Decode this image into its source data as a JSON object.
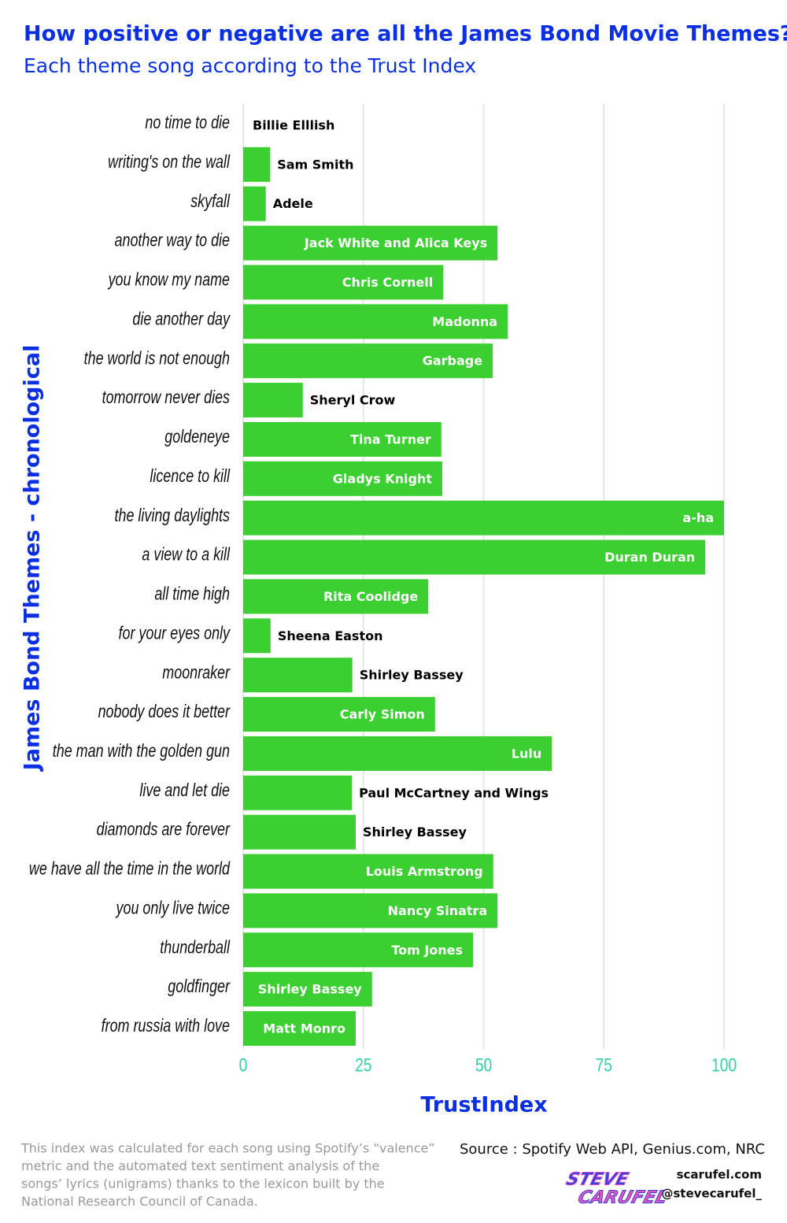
{
  "chart_data": {
    "type": "bar",
    "orientation": "horizontal",
    "title": "How positive or negative are all the James Bond Movie Themes?",
    "subtitle": "Each theme song according to the Trust Index",
    "y_label": "James Bond Themes - chronological",
    "x_label": "TrustIndex",
    "categories": [
      "no time to die",
      "writing's on the wall",
      "skyfall",
      "another way to die",
      "you know my name",
      "die another day",
      "the world is not enough",
      "tomorrow never dies",
      "goldeneye",
      "licence to kill",
      "the living daylights",
      "a view to a kill",
      "all time high",
      "for your eyes only",
      "moonraker",
      "nobody does it better",
      "the man with the golden gun",
      "live and let die",
      "diamonds are forever",
      "we have all the time in the world",
      "you only live twice",
      "thunderball",
      "goldfinger",
      "from russia with love"
    ],
    "values": [
      0,
      5.6,
      4.7,
      52.9,
      41.6,
      55.0,
      51.9,
      12.4,
      41.2,
      41.4,
      100,
      96.1,
      38.5,
      5.7,
      22.7,
      39.9,
      64.2,
      22.6,
      23.4,
      52.0,
      52.9,
      47.8,
      26.8,
      23.4
    ],
    "artists": [
      "Billie Elllish",
      "Sam Smith",
      "Adele",
      "Jack White and Alica Keys",
      "Chris Cornell",
      "Madonna",
      "Garbage",
      "Sheryl Crow",
      "Tina Turner",
      "Gladys Knight",
      "a-ha",
      "Duran Duran",
      "Rita Coolidge",
      "Sheena Easton",
      "Shirley Bassey",
      "Carly Simon",
      "Lulu",
      "Paul McCartney and Wings",
      "Shirley Bassey",
      "Louis Armstrong",
      "Nancy Sinatra",
      "Tom Jones",
      "Shirley Bassey",
      "Matt Monro"
    ],
    "color": "#3ccf32",
    "xlim": [
      0,
      100
    ],
    "xticks": [
      0,
      25,
      50,
      75,
      100
    ],
    "grid": true,
    "footnote": [
      "This index was calculated for each song using Spotify’s “valence”",
      "metric and the automated text sentiment analysis of the",
      "songs’ lyrics (unigrams) thanks to the lexicon built by the",
      "National Research Council of Canada."
    ],
    "source": "Source : Spotify Web API, Genius.com, NRC",
    "credit": [
      "scarufel.com",
      "@stevecarufel_"
    ],
    "logo": [
      "STEVE",
      "CARUFEL"
    ]
  }
}
